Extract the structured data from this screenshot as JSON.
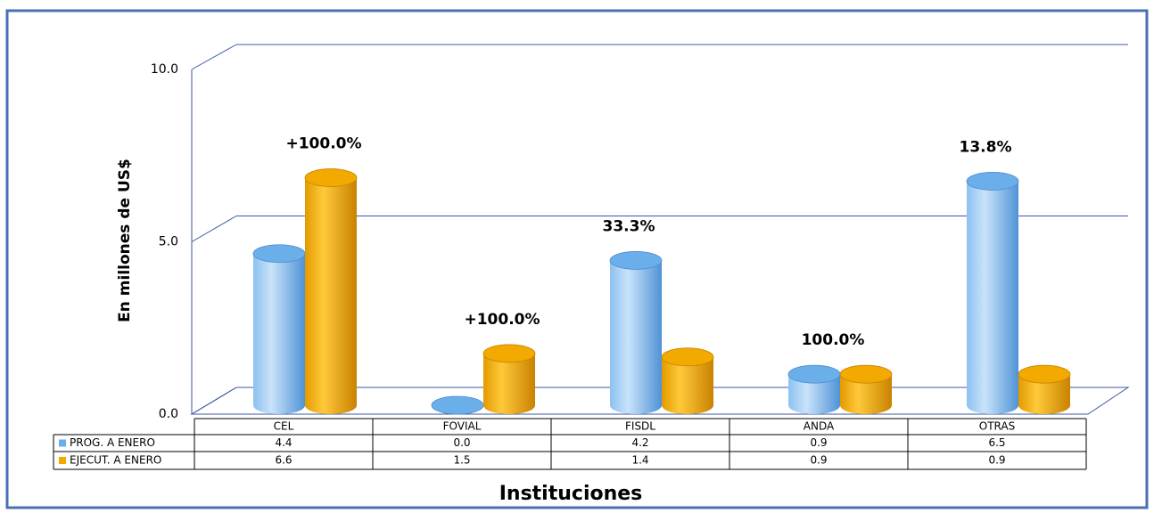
{
  "chart_data": {
    "type": "bar3d",
    "y_axis_label": "En millones de US$",
    "x_axis_label": "Instituciones",
    "categories": [
      "CEL",
      "FOVIAL",
      "FISDL",
      "ANDA",
      "OTRAS"
    ],
    "series": [
      {
        "name": "PROG. A ENERO",
        "color": "#6aaeea",
        "values": [
          4.4,
          0.0,
          4.2,
          0.9,
          6.5
        ],
        "value_labels": [
          "4.4",
          "0.0",
          "4.2",
          "0.9",
          "6.5"
        ]
      },
      {
        "name": "EJECUT. A ENERO",
        "color": "#f2a900",
        "values": [
          6.6,
          1.5,
          1.4,
          0.9,
          0.9
        ],
        "value_labels": [
          "6.6",
          "1.5",
          "1.4",
          "0.9",
          "0.9"
        ]
      }
    ],
    "annotations": [
      "+100.0%",
      "+100.0%",
      "33.3%",
      "100.0%",
      "13.8%"
    ],
    "ylim": [
      0,
      10
    ],
    "yticks": [
      {
        "value": 0,
        "label": "0.0"
      },
      {
        "value": 5,
        "label": "5.0"
      },
      {
        "value": 10,
        "label": "10.0"
      }
    ],
    "grid": true
  }
}
